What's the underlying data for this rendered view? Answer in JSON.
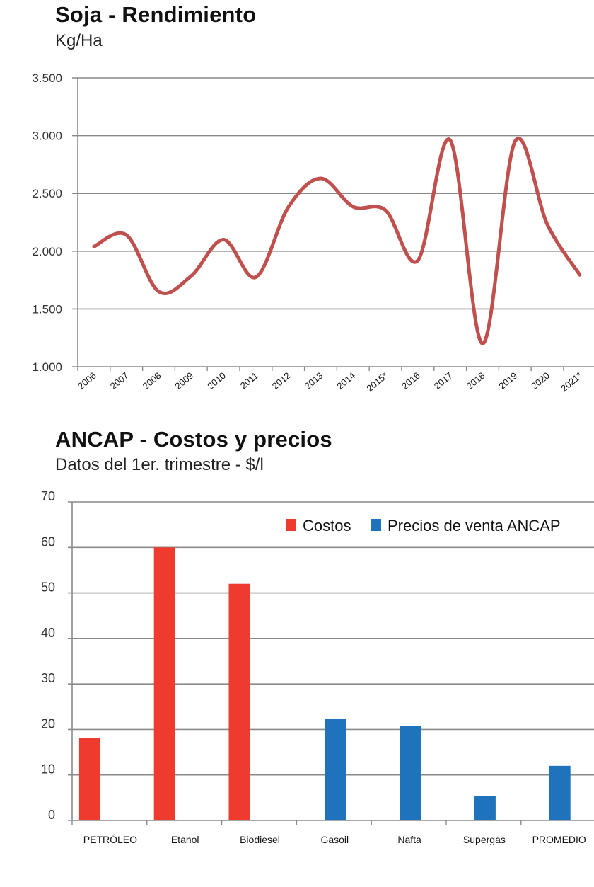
{
  "chart_data": [
    {
      "type": "line",
      "title": "Soja - Rendimiento",
      "subtitle": "Kg/Ha",
      "categories": [
        "2006",
        "2007",
        "2008",
        "2009",
        "2010",
        "2011",
        "2012",
        "2013",
        "2014",
        "2015*",
        "2016",
        "2017",
        "2018",
        "2019",
        "2020",
        "2021*"
      ],
      "values": [
        2040,
        2140,
        1650,
        1785,
        2100,
        1775,
        2380,
        2630,
        2385,
        2355,
        1920,
        2960,
        1200,
        2950,
        2230,
        1795
      ],
      "yticks": [
        "1.000",
        "1.500",
        "2.000",
        "2.500",
        "3.000",
        "3.500"
      ],
      "ylim": [
        1000,
        3500
      ],
      "grid": true,
      "smooth": true,
      "color": "#c0504d"
    },
    {
      "type": "bar",
      "title": "ANCAP - Costos y precios",
      "subtitle": "Datos del 1er. trimestre - $/l",
      "categories": [
        "PETRÓLEO",
        "Etanol",
        "Biodiesel",
        "Gasoil",
        "Nafta",
        "Supergas",
        "PROMEDIO"
      ],
      "series": [
        {
          "name": "Costos",
          "color": "#ee3a2f",
          "values": [
            18.2,
            60,
            52,
            null,
            null,
            null,
            null
          ]
        },
        {
          "name": "Precios de venta ANCAP",
          "color": "#1f73bd",
          "values": [
            null,
            null,
            null,
            22.4,
            20.7,
            5.3,
            12
          ]
        }
      ],
      "yticks": [
        "0",
        "10",
        "20",
        "30",
        "40",
        "50",
        "60",
        "70"
      ],
      "ylim": [
        0,
        70
      ],
      "grid": true,
      "legend": "top-right"
    }
  ]
}
